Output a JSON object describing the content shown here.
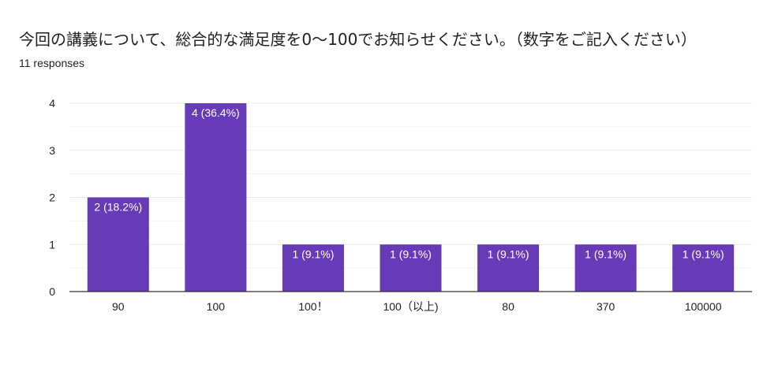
{
  "header": {
    "question_title": "今回の講義について、総合的な満足度を0〜100でお知らせください。（数字をご記入ください）",
    "responses_count": "11 responses"
  },
  "colors": {
    "bar": "#673ab7",
    "grid": "#ebebeb",
    "axis": "#333333"
  },
  "chart_data": {
    "type": "bar",
    "title": "今回の講義について、総合的な満足度を0〜100でお知らせください。（数字をご記入ください）",
    "xlabel": "",
    "ylabel": "",
    "ylim": [
      0,
      4
    ],
    "yticks": [
      "0",
      "1",
      "2",
      "3",
      "4"
    ],
    "categories": [
      "90",
      "100",
      "100！",
      "100（以上)",
      "80",
      "370",
      "100000"
    ],
    "values": [
      2,
      4,
      1,
      1,
      1,
      1,
      1
    ],
    "data_labels": [
      "2 (18.2%)",
      "4 (36.4%)",
      "1 (9.1%)",
      "1 (9.1%)",
      "1 (9.1%)",
      "1 (9.1%)",
      "1 (9.1%)"
    ],
    "grid": true,
    "legend": "none"
  }
}
